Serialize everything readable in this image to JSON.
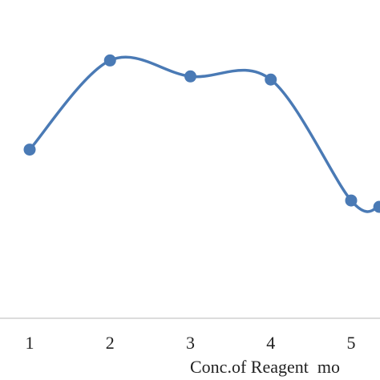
{
  "chart_data": {
    "type": "line",
    "smooth": true,
    "markers": true,
    "x": [
      1,
      2,
      3,
      4,
      5,
      5.35
    ],
    "series": [
      {
        "values": [
          0.53,
          0.81,
          0.76,
          0.75,
          0.37,
          0.35
        ],
        "color": "#4a7ab5"
      }
    ],
    "xticks": [
      "1",
      "2",
      "3",
      "4",
      "5"
    ],
    "xlabel": "Conc.of Reagent  mo",
    "ylim": [
      0,
      1
    ],
    "grid": false,
    "legend": "none"
  }
}
